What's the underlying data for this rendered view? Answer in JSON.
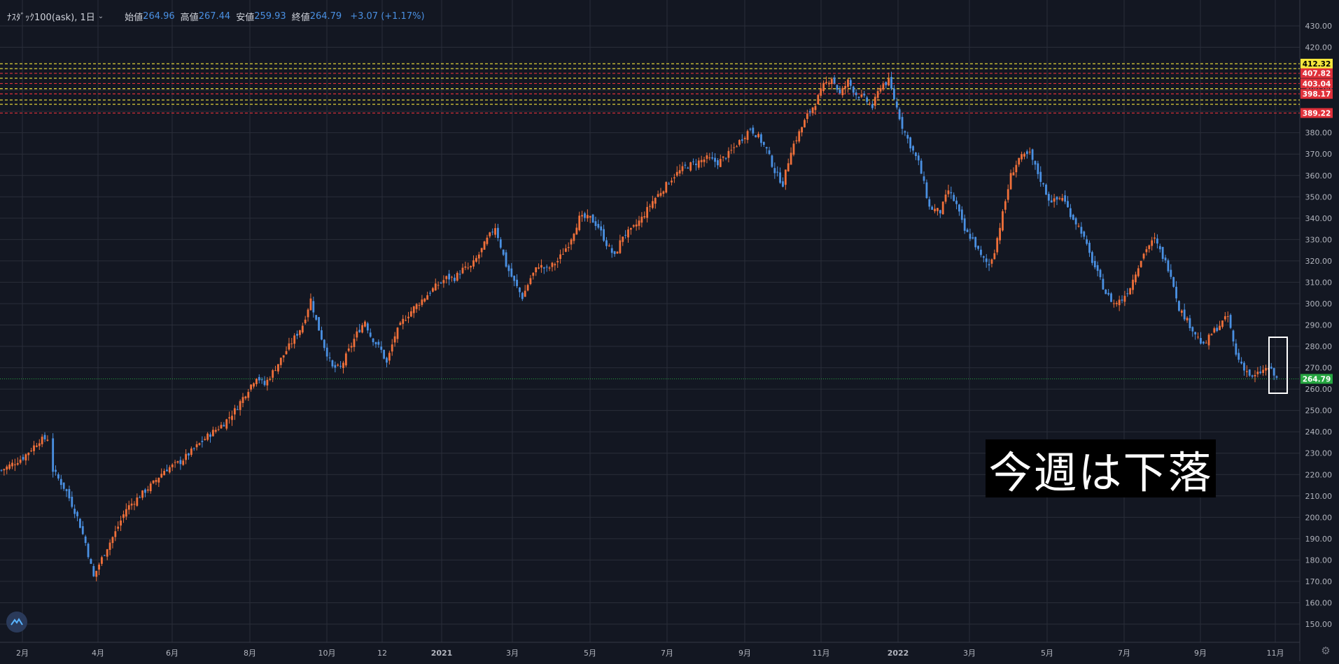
{
  "legend": {
    "symbol": "ﾅｽﾀﾞｯｸ100(ask), 1日",
    "open_label": "始値",
    "open": "264.96",
    "high_label": "高値",
    "high": "267.44",
    "low_label": "安値",
    "low": "259.93",
    "close_label": "終値",
    "close": "264.79",
    "change": "+3.07 (+1.17%)"
  },
  "annotation": {
    "text": "今週は下落"
  },
  "colors": {
    "background": "#131722",
    "up": "#f0703a",
    "down": "#4a90e2",
    "grid": "#2a2e39",
    "current_price": "#26a641",
    "resistance_yellow": "#f5e63c",
    "resistance_red": "#e0303a"
  },
  "chart_data": {
    "type": "candlestick",
    "ylim": [
      145,
      435
    ],
    "y_ticks": [
      "150.00",
      "160.00",
      "170.00",
      "180.00",
      "190.00",
      "200.00",
      "210.00",
      "220.00",
      "230.00",
      "240.00",
      "250.00",
      "260.00",
      "270.00",
      "280.00",
      "290.00",
      "300.00",
      "310.00",
      "320.00",
      "330.00",
      "340.00",
      "350.00",
      "360.00",
      "370.00",
      "380.00",
      "390.00",
      "400.00",
      "410.00",
      "420.00",
      "430.00"
    ],
    "x_ticks": [
      "2月",
      "4月",
      "6月",
      "8月",
      "10月",
      "12",
      "2021",
      "3月",
      "5月",
      "7月",
      "9月",
      "11月",
      "2022",
      "3月",
      "5月",
      "7月",
      "9月",
      "11月"
    ],
    "current_price": {
      "value": 264.79,
      "label": "264.79"
    },
    "price_labels": [
      {
        "value": 412.32,
        "label": "412.32",
        "color": "yellow"
      },
      {
        "value": 407.82,
        "label": "407.82",
        "color": "red"
      },
      {
        "value": 403.04,
        "label": "403.04",
        "color": "red"
      },
      {
        "value": 398.17,
        "label": "398.17",
        "color": "red"
      },
      {
        "value": 389.22,
        "label": "389.22",
        "color": "red"
      }
    ],
    "horizontal_lines": [
      {
        "value": 412.3,
        "color": "yellow"
      },
      {
        "value": 410.0,
        "color": "yellow"
      },
      {
        "value": 407.8,
        "color": "red"
      },
      {
        "value": 405.5,
        "color": "yellow"
      },
      {
        "value": 403.0,
        "color": "red"
      },
      {
        "value": 400.6,
        "color": "yellow"
      },
      {
        "value": 398.2,
        "color": "red"
      },
      {
        "value": 395.3,
        "color": "yellow"
      },
      {
        "value": 393.3,
        "color": "yellow"
      },
      {
        "value": 389.2,
        "color": "red"
      }
    ],
    "close_path": [
      [
        0,
        222
      ],
      [
        8,
        228
      ],
      [
        14,
        236
      ],
      [
        17,
        237
      ],
      [
        19,
        222
      ],
      [
        24,
        212
      ],
      [
        28,
        200
      ],
      [
        31,
        188
      ],
      [
        34,
        172
      ],
      [
        36,
        178
      ],
      [
        39,
        186
      ],
      [
        42,
        193
      ],
      [
        46,
        204
      ],
      [
        51,
        210
      ],
      [
        56,
        216
      ],
      [
        60,
        222
      ],
      [
        66,
        226
      ],
      [
        71,
        232
      ],
      [
        76,
        238
      ],
      [
        82,
        244
      ],
      [
        86,
        250
      ],
      [
        90,
        258
      ],
      [
        94,
        266
      ],
      [
        97,
        262
      ],
      [
        101,
        270
      ],
      [
        106,
        280
      ],
      [
        111,
        290
      ],
      [
        114,
        302
      ],
      [
        116,
        292
      ],
      [
        119,
        280
      ],
      [
        122,
        270
      ],
      [
        125,
        270
      ],
      [
        128,
        278
      ],
      [
        131,
        286
      ],
      [
        134,
        292
      ],
      [
        136,
        285
      ],
      [
        140,
        278
      ],
      [
        142,
        272
      ],
      [
        145,
        285
      ],
      [
        148,
        292
      ],
      [
        152,
        298
      ],
      [
        156,
        303
      ],
      [
        160,
        308
      ],
      [
        164,
        312
      ],
      [
        167,
        312
      ],
      [
        170,
        316
      ],
      [
        173,
        317
      ],
      [
        176,
        323
      ],
      [
        179,
        330
      ],
      [
        182,
        336
      ],
      [
        186,
        318
      ],
      [
        189,
        310
      ],
      [
        192,
        303
      ],
      [
        195,
        312
      ],
      [
        198,
        318
      ],
      [
        201,
        316
      ],
      [
        205,
        320
      ],
      [
        209,
        328
      ],
      [
        213,
        340
      ],
      [
        217,
        340
      ],
      [
        220,
        336
      ],
      [
        223,
        328
      ],
      [
        226,
        322
      ],
      [
        229,
        332
      ],
      [
        232,
        334
      ],
      [
        236,
        340
      ],
      [
        240,
        348
      ],
      [
        244,
        354
      ],
      [
        248,
        360
      ],
      [
        252,
        364
      ],
      [
        256,
        366
      ],
      [
        260,
        368
      ],
      [
        264,
        366
      ],
      [
        268,
        370
      ],
      [
        272,
        376
      ],
      [
        276,
        382
      ],
      [
        279,
        378
      ],
      [
        282,
        372
      ],
      [
        285,
        362
      ],
      [
        288,
        356
      ],
      [
        291,
        372
      ],
      [
        294,
        380
      ],
      [
        297,
        388
      ],
      [
        300,
        394
      ],
      [
        303,
        402
      ],
      [
        306,
        406
      ],
      [
        309,
        398
      ],
      [
        312,
        404
      ],
      [
        315,
        398
      ],
      [
        318,
        396
      ],
      [
        321,
        392
      ],
      [
        324,
        402
      ],
      [
        327,
        404
      ],
      [
        329,
        396
      ],
      [
        332,
        383
      ],
      [
        335,
        374
      ],
      [
        338,
        366
      ],
      [
        340,
        356
      ],
      [
        342,
        345
      ],
      [
        346,
        343
      ],
      [
        349,
        353
      ],
      [
        352,
        346
      ],
      [
        355,
        334
      ],
      [
        358,
        330
      ],
      [
        361,
        322
      ],
      [
        364,
        318
      ],
      [
        366,
        325
      ],
      [
        369,
        342
      ],
      [
        372,
        360
      ],
      [
        375,
        368
      ],
      [
        379,
        370
      ],
      [
        382,
        361
      ],
      [
        386,
        349
      ],
      [
        388,
        348
      ],
      [
        391,
        350
      ],
      [
        394,
        342
      ],
      [
        398,
        334
      ],
      [
        401,
        323
      ],
      [
        404,
        314
      ],
      [
        407,
        305
      ],
      [
        410,
        300
      ],
      [
        413,
        302
      ],
      [
        416,
        308
      ],
      [
        419,
        318
      ],
      [
        422,
        326
      ],
      [
        425,
        330
      ],
      [
        428,
        322
      ],
      [
        431,
        314
      ],
      [
        434,
        298
      ],
      [
        437,
        292
      ],
      [
        440,
        286
      ],
      [
        443,
        280
      ],
      [
        446,
        286
      ],
      [
        449,
        290
      ],
      [
        452,
        294
      ],
      [
        455,
        276
      ],
      [
        458,
        270
      ],
      [
        461,
        265
      ],
      [
        464,
        268
      ],
      [
        467,
        270
      ],
      [
        470,
        264.79
      ]
    ],
    "ohlc_latest": {
      "open": 264.96,
      "high": 267.44,
      "low": 259.93,
      "close": 264.79
    }
  }
}
